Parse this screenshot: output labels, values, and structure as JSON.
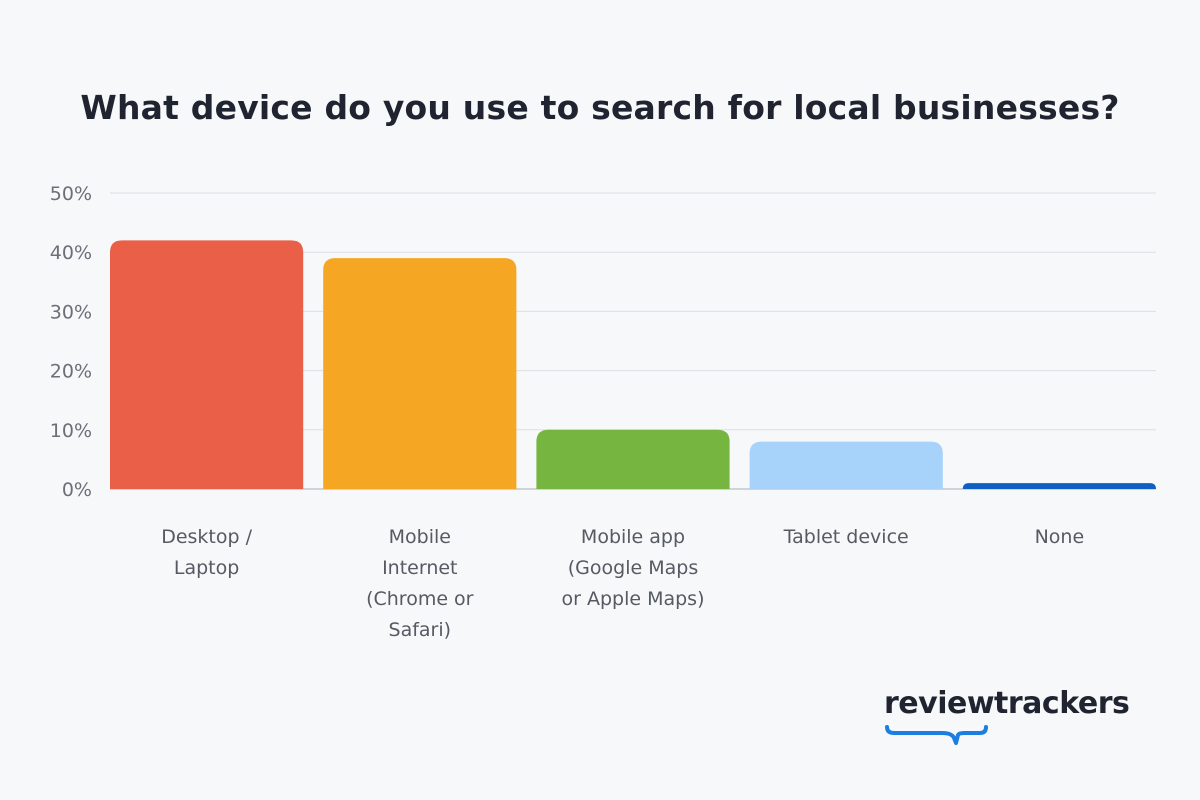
{
  "chart_data": {
    "type": "bar",
    "title": "What device do you use to search for local businesses?",
    "categories": [
      "Desktop / Laptop",
      "Mobile Internet (Chrome or Safari)",
      "Mobile app (Google Maps or Apple Maps)",
      "Tablet device",
      "None"
    ],
    "values": [
      42,
      39,
      10,
      8,
      1
    ],
    "colors": [
      "#e95f48",
      "#f5a623",
      "#76b53f",
      "#a7d3fb",
      "#0f5fc4"
    ],
    "ylim": [
      0,
      50
    ],
    "yticks": [
      0,
      10,
      20,
      30,
      40,
      50
    ],
    "ytick_labels": [
      "0%",
      "10%",
      "20%",
      "30%",
      "40%",
      "50%"
    ],
    "grid": true,
    "xlabel": "",
    "ylabel": ""
  },
  "brand": {
    "name": "reviewtrackers",
    "accent": "#1a7fe0"
  }
}
